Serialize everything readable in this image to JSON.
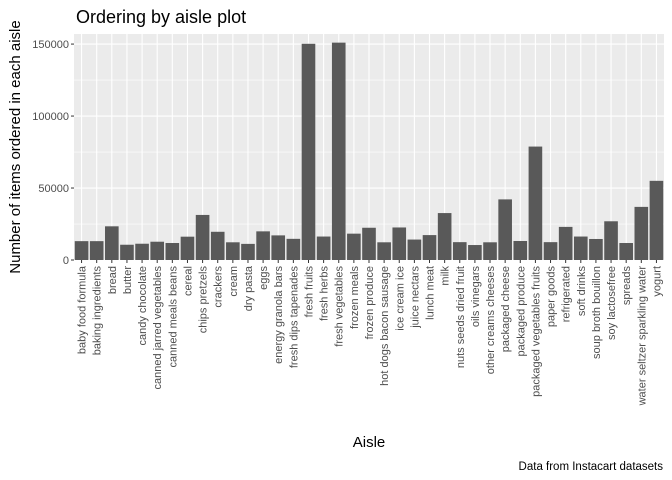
{
  "chart_data": {
    "type": "bar",
    "title": "Ordering by aisle plot",
    "xlabel": "Aisle",
    "ylabel": "Number of items ordered in each aisle",
    "caption": "Data from Instacart datasets",
    "ylim": [
      0,
      157000
    ],
    "yticks": [
      0,
      50000,
      100000,
      150000
    ],
    "ytick_labels": [
      "0",
      "50000",
      "100000",
      "150000"
    ],
    "grid": true,
    "bar_color": "#595959",
    "panel_color": "#ebebeb",
    "grid_color": "#ffffff",
    "categories": [
      "baby food formula",
      "baking ingredients",
      "bread",
      "butter",
      "candy chocolate",
      "canned jarred vegetables",
      "canned meals beans",
      "cereal",
      "chips pretzels",
      "crackers",
      "cream",
      "dry pasta",
      "eggs",
      "energy granola bars",
      "fresh dips tapenades",
      "fresh fruits",
      "fresh herbs",
      "fresh vegetables",
      "frozen meals",
      "frozen produce",
      "hot dogs bacon sausage",
      "ice cream ice",
      "juice nectars",
      "lunch meat",
      "milk",
      "nuts seeds dried fruit",
      "oils vinegars",
      "other creams cheeses",
      "packaged cheese",
      "packaged produce",
      "packaged vegetables fruits",
      "paper goods",
      "refrigerated",
      "soft drinks",
      "soup broth bouillon",
      "soy lactosefree",
      "spreads",
      "water seltzer sparkling water",
      "yogurt"
    ],
    "values": [
      13100,
      13100,
      23400,
      10600,
      11300,
      12700,
      11800,
      16200,
      31300,
      19600,
      12300,
      11200,
      19900,
      17100,
      14700,
      150200,
      16300,
      151000,
      18300,
      22400,
      12300,
      22600,
      14200,
      17300,
      32600,
      12400,
      10400,
      12300,
      42100,
      13200,
      78800,
      12400,
      23000,
      16300,
      14600,
      26900,
      11800,
      36900,
      55000
    ]
  }
}
